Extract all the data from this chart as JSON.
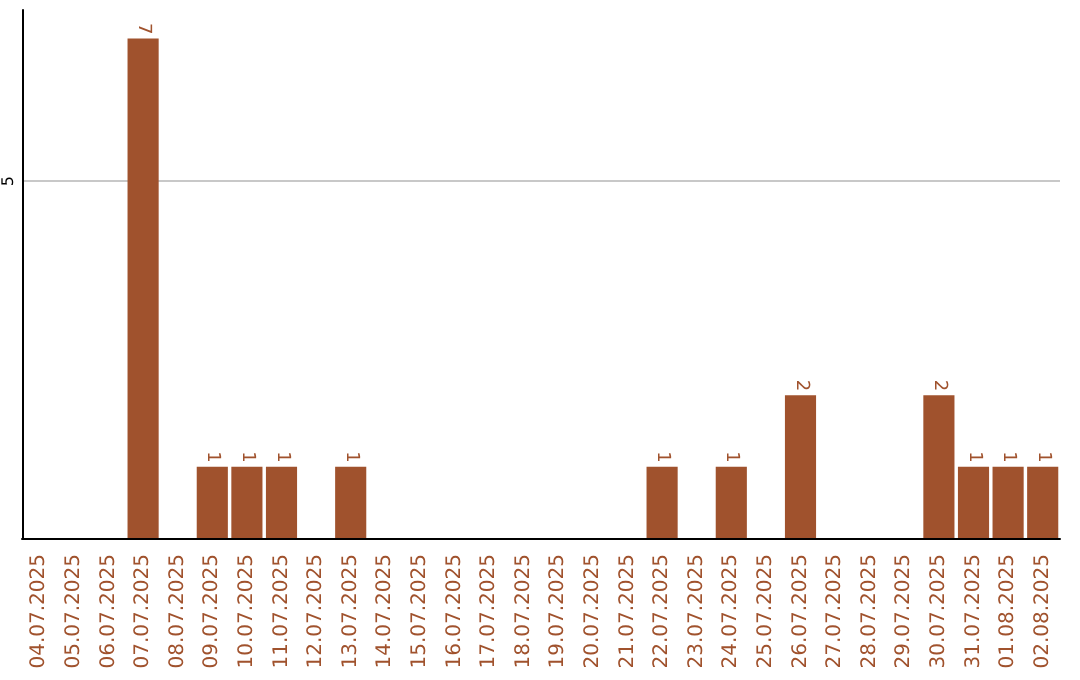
{
  "chart_data": {
    "type": "bar",
    "categories": [
      "04.07.2025",
      "05.07.2025",
      "06.07.2025",
      "07.07.2025",
      "08.07.2025",
      "09.07.2025",
      "10.07.2025",
      "11.07.2025",
      "12.07.2025",
      "13.07.2025",
      "14.07.2025",
      "15.07.2025",
      "16.07.2025",
      "17.07.2025",
      "18.07.2025",
      "19.07.2025",
      "20.07.2025",
      "21.07.2025",
      "22.07.2025",
      "23.07.2025",
      "24.07.2025",
      "25.07.2025",
      "26.07.2025",
      "27.07.2025",
      "28.07.2025",
      "29.07.2025",
      "30.07.2025",
      "31.07.2025",
      "01.08.2025",
      "02.08.2025"
    ],
    "values": [
      0,
      0,
      0,
      7,
      0,
      1,
      1,
      1,
      0,
      1,
      0,
      0,
      0,
      0,
      0,
      0,
      0,
      0,
      1,
      0,
      1,
      0,
      2,
      0,
      0,
      0,
      2,
      1,
      1,
      1
    ],
    "value_labels": [
      null,
      null,
      null,
      "7",
      null,
      "1",
      "1",
      "1",
      null,
      "1",
      null,
      null,
      null,
      null,
      null,
      null,
      null,
      null,
      "1",
      null,
      "1",
      null,
      "2",
      null,
      null,
      null,
      "2",
      "1",
      "1",
      "1"
    ],
    "color": "#a0522d",
    "ylim": [
      0,
      7.4
    ],
    "yticks": [
      5
    ],
    "grid": "y"
  }
}
